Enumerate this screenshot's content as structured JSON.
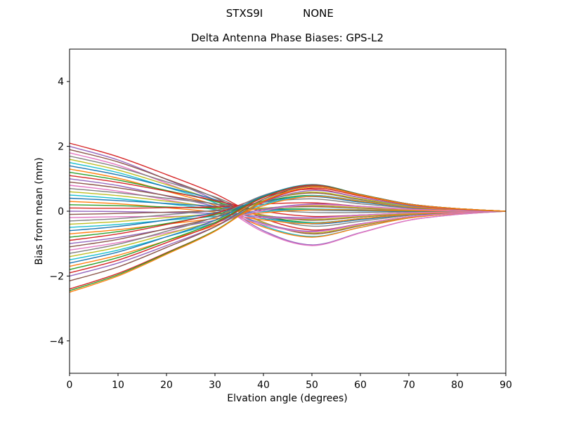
{
  "figure": {
    "background": "#ffffff",
    "suptitle_left": "STXS9I",
    "suptitle_right": "NONE"
  },
  "chart_data": {
    "type": "line",
    "suptitle": "STXS9I          NONE",
    "title": "Delta Antenna Phase Biases: GPS-L2",
    "xlabel": "Elvation angle (degrees)",
    "ylabel": "Bias from mean (mm)",
    "xlim": [
      0,
      90
    ],
    "ylim": [
      -5,
      5
    ],
    "xticks": [
      0,
      10,
      20,
      30,
      40,
      50,
      60,
      70,
      80,
      90
    ],
    "xtick_labels": [
      "0",
      "10",
      "20",
      "30",
      "40",
      "50",
      "60",
      "70",
      "80",
      "90"
    ],
    "yticks": [
      -4,
      -2,
      0,
      2,
      4
    ],
    "ytick_labels": [
      "−4",
      "−2",
      "0",
      "2",
      "4"
    ],
    "grid": false,
    "legend": "none",
    "line_width": 1.4,
    "axis_color": "#000000",
    "x": [
      0,
      10,
      20,
      30,
      40,
      50,
      60,
      70,
      80,
      90
    ],
    "series": [
      {
        "color": "#d62728",
        "values": [
          2.1,
          1.68,
          1.13,
          0.54,
          -0.22,
          -0.58,
          -0.39,
          -0.17,
          -0.06,
          0
        ]
      },
      {
        "color": "#9467bd",
        "values": [
          2.0,
          1.58,
          0.98,
          0.34,
          -0.6,
          -1.04,
          -0.66,
          -0.28,
          -0.1,
          0
        ]
      },
      {
        "color": "#8c564b",
        "values": [
          1.9,
          1.52,
          0.99,
          0.42,
          -0.34,
          -0.7,
          -0.45,
          -0.19,
          -0.07,
          0
        ]
      },
      {
        "color": "#e377c2",
        "values": [
          1.8,
          1.42,
          0.86,
          0.26,
          -0.64,
          -1.06,
          -0.67,
          -0.28,
          -0.1,
          0
        ]
      },
      {
        "color": "#7f7f7f",
        "values": [
          1.7,
          1.36,
          0.91,
          0.44,
          -0.17,
          -0.46,
          -0.31,
          -0.13,
          -0.05,
          0
        ]
      },
      {
        "color": "#bcbd22",
        "values": [
          1.6,
          1.27,
          0.82,
          0.33,
          -0.35,
          -0.67,
          -0.43,
          -0.18,
          -0.06,
          0
        ]
      },
      {
        "color": "#17becf",
        "values": [
          1.5,
          1.19,
          0.74,
          0.26,
          -0.45,
          -0.78,
          -0.5,
          -0.21,
          -0.07,
          0
        ]
      },
      {
        "color": "#1f77b4",
        "values": [
          1.4,
          1.12,
          0.75,
          0.36,
          -0.15,
          -0.39,
          -0.26,
          -0.11,
          -0.04,
          0
        ]
      },
      {
        "color": "#ff7f0e",
        "values": [
          1.3,
          1.02,
          0.62,
          0.18,
          -0.49,
          -0.8,
          -0.5,
          -0.21,
          -0.07,
          0
        ]
      },
      {
        "color": "#2ca02c",
        "values": [
          1.2,
          0.96,
          0.64,
          0.3,
          -0.14,
          -0.35,
          -0.23,
          -0.1,
          -0.04,
          0
        ]
      },
      {
        "color": "#d62728",
        "values": [
          1.1,
          0.89,
          0.62,
          0.33,
          0.0,
          -0.16,
          -0.12,
          -0.05,
          -0.02,
          0
        ]
      },
      {
        "color": "#9467bd",
        "values": [
          1.0,
          0.79,
          0.47,
          0.14,
          -0.38,
          -0.62,
          -0.39,
          -0.17,
          -0.06,
          0
        ]
      },
      {
        "color": "#8c564b",
        "values": [
          0.9,
          0.72,
          0.48,
          0.22,
          -0.12,
          -0.28,
          -0.18,
          -0.08,
          -0.03,
          0
        ]
      },
      {
        "color": "#e377c2",
        "values": [
          0.8,
          0.62,
          0.35,
          0.06,
          -0.42,
          -0.64,
          -0.4,
          -0.17,
          -0.06,
          0
        ]
      },
      {
        "color": "#7f7f7f",
        "values": [
          0.7,
          0.57,
          0.4,
          0.23,
          0.05,
          -0.04,
          -0.04,
          -0.02,
          -0.01,
          0
        ]
      },
      {
        "color": "#bcbd22",
        "values": [
          0.6,
          0.48,
          0.31,
          0.12,
          -0.13,
          -0.25,
          -0.16,
          -0.07,
          -0.02,
          0
        ]
      },
      {
        "color": "#17becf",
        "values": [
          0.5,
          0.39,
          0.23,
          0.05,
          -0.23,
          -0.36,
          -0.23,
          -0.1,
          -0.03,
          0
        ]
      },
      {
        "color": "#1f77b4",
        "values": [
          0.4,
          0.33,
          0.24,
          0.15,
          0.07,
          0.03,
          0.01,
          0.0,
          0.0,
          0
        ]
      },
      {
        "color": "#ff7f0e",
        "values": [
          0.3,
          0.23,
          0.11,
          -0.03,
          -0.27,
          -0.38,
          -0.23,
          -0.1,
          -0.03,
          0
        ]
      },
      {
        "color": "#2ca02c",
        "values": [
          0.2,
          0.17,
          0.13,
          0.09,
          0.08,
          0.07,
          0.04,
          0.01,
          0.0,
          0
        ]
      },
      {
        "color": "#d62728",
        "values": [
          0.1,
          0.09,
          0.11,
          0.13,
          0.22,
          0.26,
          0.15,
          0.06,
          0.02,
          0
        ]
      },
      {
        "color": "#9467bd",
        "values": [
          0.0,
          -0.01,
          -0.04,
          -0.07,
          -0.16,
          -0.2,
          -0.12,
          -0.05,
          -0.02,
          0
        ]
      },
      {
        "color": "#8c564b",
        "values": [
          -0.1,
          -0.07,
          -0.03,
          0.01,
          0.1,
          0.14,
          0.09,
          0.04,
          0.01,
          0
        ]
      },
      {
        "color": "#e377c2",
        "values": [
          -0.2,
          -0.17,
          -0.16,
          -0.15,
          -0.2,
          -0.22,
          -0.13,
          -0.05,
          -0.02,
          0
        ]
      },
      {
        "color": "#7f7f7f",
        "values": [
          -0.3,
          -0.23,
          -0.11,
          0.03,
          0.27,
          0.38,
          0.23,
          0.1,
          0.03,
          0
        ]
      },
      {
        "color": "#bcbd22",
        "values": [
          -0.4,
          -0.32,
          -0.2,
          -0.08,
          0.09,
          0.17,
          0.11,
          0.05,
          0.02,
          0
        ]
      },
      {
        "color": "#17becf",
        "values": [
          -0.5,
          -0.41,
          -0.28,
          -0.16,
          -0.01,
          0.06,
          0.05,
          0.02,
          0.01,
          0
        ]
      },
      {
        "color": "#1f77b4",
        "values": [
          -0.6,
          -0.47,
          -0.27,
          -0.05,
          0.29,
          0.45,
          0.28,
          0.12,
          0.04,
          0
        ]
      },
      {
        "color": "#ff7f0e",
        "values": [
          -0.7,
          -0.57,
          -0.4,
          -0.23,
          -0.05,
          0.04,
          0.04,
          0.02,
          0.01,
          0
        ]
      },
      {
        "color": "#2ca02c",
        "values": [
          -0.8,
          -0.63,
          -0.38,
          -0.11,
          0.3,
          0.49,
          0.31,
          0.13,
          0.04,
          0
        ]
      },
      {
        "color": "#d62728",
        "values": [
          -0.9,
          -0.7,
          -0.41,
          -0.08,
          0.44,
          0.68,
          0.42,
          0.18,
          0.06,
          0
        ]
      },
      {
        "color": "#9467bd",
        "values": [
          -1.0,
          -0.81,
          -0.55,
          -0.28,
          0.06,
          0.22,
          0.15,
          0.07,
          0.02,
          0
        ]
      },
      {
        "color": "#8c564b",
        "values": [
          -1.1,
          -0.87,
          -0.54,
          -0.19,
          0.32,
          0.56,
          0.36,
          0.15,
          0.05,
          0
        ]
      },
      {
        "color": "#e377c2",
        "values": [
          -1.2,
          -0.97,
          -0.67,
          -0.35,
          0.02,
          0.2,
          0.14,
          0.06,
          0.02,
          0
        ]
      },
      {
        "color": "#7f7f7f",
        "values": [
          -1.3,
          -1.02,
          -0.62,
          -0.18,
          0.49,
          0.8,
          0.5,
          0.21,
          0.07,
          0
        ]
      },
      {
        "color": "#bcbd22",
        "values": [
          -1.4,
          -1.11,
          -0.71,
          -0.29,
          0.31,
          0.59,
          0.38,
          0.16,
          0.06,
          0
        ]
      },
      {
        "color": "#17becf",
        "values": [
          -1.5,
          -1.2,
          -0.79,
          -0.36,
          0.21,
          0.48,
          0.32,
          0.14,
          0.05,
          0
        ]
      },
      {
        "color": "#1f77b4",
        "values": [
          -1.6,
          -1.26,
          -0.79,
          -0.28,
          0.47,
          0.82,
          0.52,
          0.22,
          0.08,
          0
        ]
      },
      {
        "color": "#ff7f0e",
        "values": [
          -1.7,
          -1.36,
          -0.91,
          -0.44,
          0.17,
          0.46,
          0.31,
          0.13,
          0.05,
          0
        ]
      },
      {
        "color": "#2ca02c",
        "values": [
          -1.8,
          -1.43,
          -0.91,
          -0.35,
          0.44,
          0.81,
          0.52,
          0.22,
          0.08,
          0
        ]
      },
      {
        "color": "#d62728",
        "values": [
          -1.9,
          -1.51,
          -0.97,
          -0.39,
          0.42,
          0.8,
          0.51,
          0.22,
          0.08,
          0
        ]
      },
      {
        "color": "#9467bd",
        "values": [
          -2.0,
          -1.6,
          -1.06,
          -0.48,
          0.28,
          0.64,
          0.42,
          0.18,
          0.06,
          0
        ]
      },
      {
        "color": "#8c564b",
        "values": [
          -2.15,
          -1.72,
          -1.12,
          -0.48,
          0.37,
          0.78,
          0.51,
          0.22,
          0.08,
          0
        ]
      },
      {
        "color": "#d62728",
        "values": [
          -2.4,
          -1.92,
          -1.28,
          -0.6,
          0.29,
          0.71,
          0.47,
          0.2,
          0.07,
          0
        ]
      },
      {
        "color": "#2ca02c",
        "values": [
          -2.45,
          -1.96,
          -1.3,
          -0.6,
          0.32,
          0.75,
          0.5,
          0.21,
          0.08,
          0
        ]
      },
      {
        "color": "#ff7f0e",
        "values": [
          -2.5,
          -2.0,
          -1.33,
          -0.62,
          0.31,
          0.75,
          0.5,
          0.21,
          0.08,
          0
        ]
      }
    ]
  }
}
